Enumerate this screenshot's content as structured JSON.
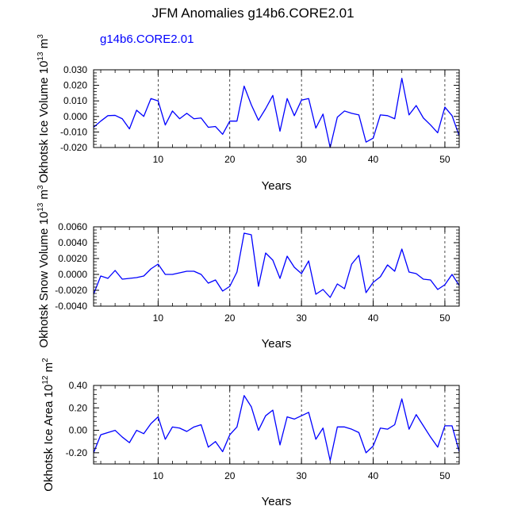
{
  "page_title": "JFM Anomalies g14b6.CORE2.01",
  "series_label": "g14b6.CORE2.01",
  "colors": {
    "line": "#0000ff",
    "axis": "#000000",
    "subtitle": "#0000ff"
  },
  "chart_data": [
    {
      "type": "line",
      "ylabel": "Okhotsk Ice Volume 10^13 m^3",
      "ylabel_base": "Okhotsk Ice Volume 10",
      "ylabel_exp": "13",
      "ylabel_unit": "m",
      "ylabel_unit_exp": "3",
      "xlabel": "Years",
      "xlim": [
        1,
        52
      ],
      "ylim": [
        -0.02,
        0.03
      ],
      "xticks": [
        10,
        20,
        30,
        40,
        50
      ],
      "xtick_labels": [
        "10",
        "20",
        "30",
        "40",
        "50"
      ],
      "yticks": [
        -0.02,
        -0.01,
        0.0,
        0.01,
        0.02,
        0.03
      ],
      "ytick_labels": [
        "-0.020",
        "-0.010",
        "0.000",
        "0.010",
        "0.020",
        "0.030"
      ],
      "grid": "dashed vertical at x ticks",
      "x": [
        1,
        2,
        3,
        4,
        5,
        6,
        7,
        8,
        9,
        10,
        11,
        12,
        13,
        14,
        15,
        16,
        17,
        18,
        19,
        20,
        21,
        22,
        23,
        24,
        25,
        26,
        27,
        28,
        29,
        30,
        31,
        32,
        33,
        34,
        35,
        36,
        37,
        38,
        39,
        40,
        41,
        42,
        43,
        44,
        45,
        46,
        47,
        48,
        49,
        50,
        51,
        52
      ],
      "values": [
        -0.007,
        -0.003,
        0.0005,
        0.0007,
        -0.0015,
        -0.008,
        0.004,
        0.0,
        0.0115,
        0.01,
        -0.0055,
        0.0035,
        -0.0015,
        0.002,
        -0.0015,
        -0.001,
        -0.007,
        -0.0065,
        -0.0115,
        -0.003,
        -0.003,
        0.0195,
        0.0075,
        -0.0025,
        0.005,
        0.0135,
        -0.0095,
        0.0115,
        0.0005,
        0.0105,
        0.0115,
        -0.0075,
        0.0015,
        -0.02,
        -0.0005,
        0.0035,
        0.002,
        0.001,
        -0.0165,
        -0.014,
        0.001,
        0.0005,
        -0.0015,
        0.0245,
        0.001,
        0.007,
        -0.001,
        -0.0055,
        -0.0105,
        0.006,
        0.0005,
        -0.0125
      ]
    },
    {
      "type": "line",
      "ylabel": "Okhotsk Snow Volume 10^13 m^3",
      "ylabel_base": "Okhotsk Snow Volume 10",
      "ylabel_exp": "13",
      "ylabel_unit": "m",
      "ylabel_unit_exp": "3",
      "xlabel": "Years",
      "xlim": [
        1,
        52
      ],
      "ylim": [
        -0.004,
        0.006
      ],
      "xticks": [
        10,
        20,
        30,
        40,
        50
      ],
      "xtick_labels": [
        "10",
        "20",
        "30",
        "40",
        "50"
      ],
      "yticks": [
        -0.004,
        -0.002,
        0.0,
        0.002,
        0.004,
        0.006
      ],
      "ytick_labels": [
        "-0.0040",
        "-0.0020",
        "0.0000",
        "0.0020",
        "0.0040",
        "0.0060"
      ],
      "grid": "dashed vertical at x ticks",
      "x": [
        1,
        2,
        3,
        4,
        5,
        6,
        7,
        8,
        9,
        10,
        11,
        12,
        13,
        14,
        15,
        16,
        17,
        18,
        19,
        20,
        21,
        22,
        23,
        24,
        25,
        26,
        27,
        28,
        29,
        30,
        31,
        32,
        33,
        34,
        35,
        36,
        37,
        38,
        39,
        40,
        41,
        42,
        43,
        44,
        45,
        46,
        47,
        48,
        49,
        50,
        51,
        52
      ],
      "values": [
        -0.0025,
        -0.0002,
        -0.0005,
        0.0005,
        -0.0006,
        -0.0005,
        -0.0004,
        -0.0002,
        0.0007,
        0.0013,
        0.0,
        0.0,
        0.0002,
        0.0004,
        0.0004,
        0.0,
        -0.0011,
        -0.0007,
        -0.0021,
        -0.0015,
        0.0003,
        0.0052,
        0.005,
        -0.0015,
        0.0027,
        0.0018,
        -0.0005,
        0.0023,
        0.0009,
        0.0001,
        0.0017,
        -0.0025,
        -0.0019,
        -0.0029,
        -0.0012,
        -0.0018,
        0.0013,
        0.0024,
        -0.0023,
        -0.001,
        -0.0003,
        0.0012,
        0.0004,
        0.0032,
        0.0003,
        0.0001,
        -0.0006,
        -0.0007,
        -0.0019,
        -0.0013,
        0.0,
        -0.0014
      ]
    },
    {
      "type": "line",
      "ylabel": "Okhotsk Ice Area 10^12 m^2",
      "ylabel_base": "Okhotsk Ice Area 10",
      "ylabel_exp": "12",
      "ylabel_unit": "m",
      "ylabel_unit_exp": "2",
      "xlabel": "Years",
      "xlim": [
        1,
        52
      ],
      "ylim": [
        -0.3,
        0.4
      ],
      "xticks": [
        10,
        20,
        30,
        40,
        50
      ],
      "xtick_labels": [
        "10",
        "20",
        "30",
        "40",
        "50"
      ],
      "yticks": [
        -0.2,
        0.0,
        0.2,
        0.4
      ],
      "ytick_labels": [
        "-0.20",
        "0.00",
        "0.20",
        "0.40"
      ],
      "grid": "dashed vertical at x ticks",
      "x": [
        1,
        2,
        3,
        4,
        5,
        6,
        7,
        8,
        9,
        10,
        11,
        12,
        13,
        14,
        15,
        16,
        17,
        18,
        19,
        20,
        21,
        22,
        23,
        24,
        25,
        26,
        27,
        28,
        29,
        30,
        31,
        32,
        33,
        34,
        35,
        36,
        37,
        38,
        39,
        40,
        41,
        42,
        43,
        44,
        45,
        46,
        47,
        48,
        49,
        50,
        51,
        52
      ],
      "values": [
        -0.2,
        -0.04,
        -0.02,
        0.0,
        -0.06,
        -0.11,
        0.0,
        -0.03,
        0.06,
        0.12,
        -0.08,
        0.03,
        0.02,
        -0.01,
        0.03,
        0.05,
        -0.15,
        -0.1,
        -0.19,
        -0.04,
        0.03,
        0.31,
        0.21,
        0.0,
        0.13,
        0.18,
        -0.13,
        0.12,
        0.1,
        0.13,
        0.16,
        -0.08,
        0.02,
        -0.27,
        0.03,
        0.03,
        0.01,
        -0.02,
        -0.2,
        -0.14,
        0.02,
        0.01,
        0.05,
        0.28,
        0.01,
        0.14,
        0.04,
        -0.06,
        -0.15,
        0.04,
        0.04,
        -0.19
      ]
    }
  ]
}
